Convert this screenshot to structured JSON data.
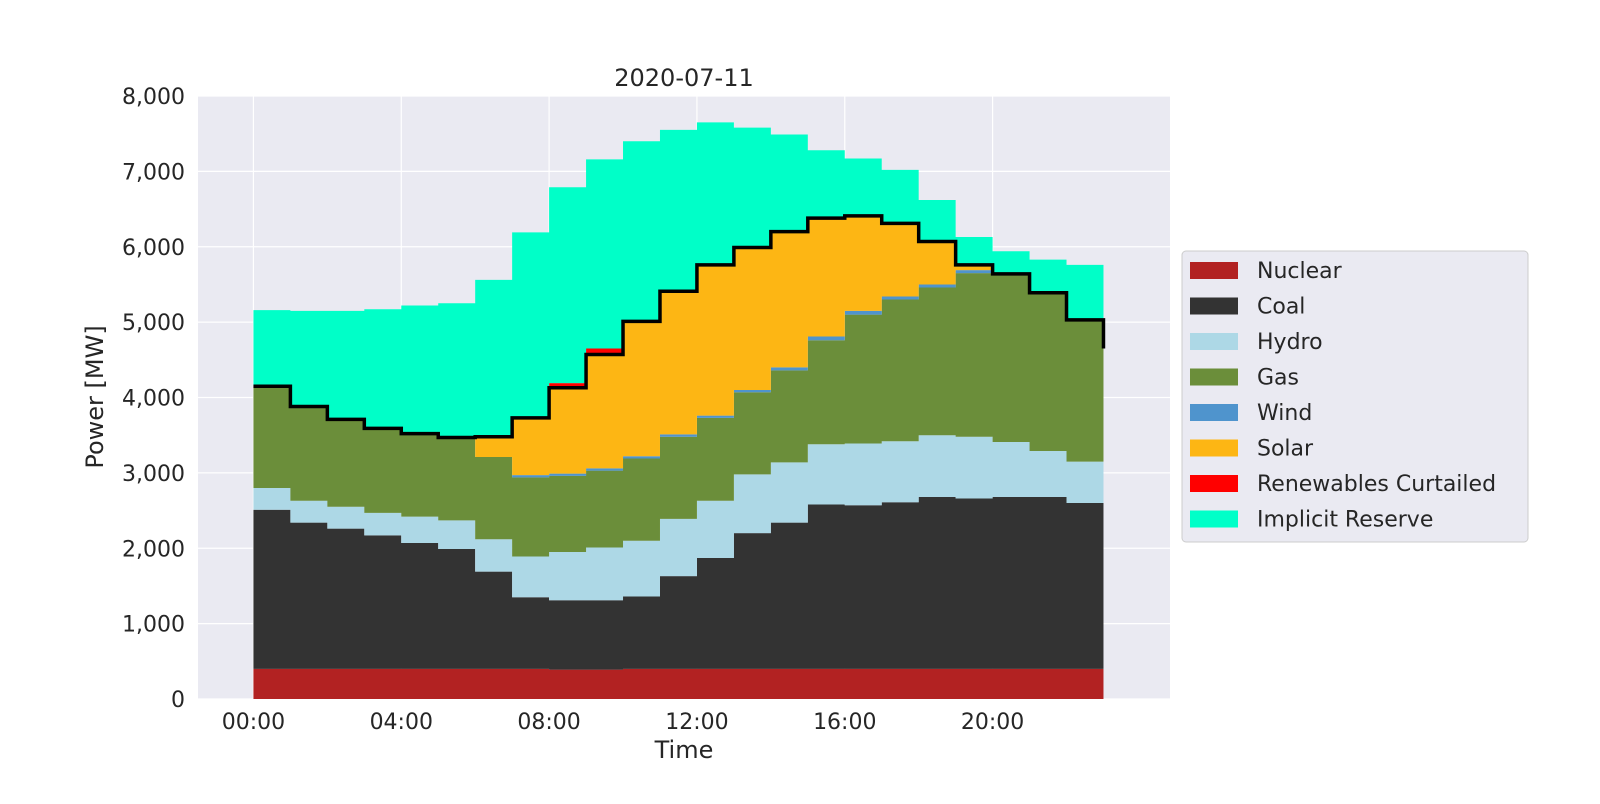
{
  "chart_data": {
    "type": "area",
    "step": "post",
    "stacked": true,
    "title": "2020-07-11",
    "xlabel": "Time",
    "ylabel": "Power [MW]",
    "xlim_hours": [
      -1.5,
      24.8
    ],
    "ylim": [
      0,
      8000
    ],
    "grid": true,
    "legend_position": "right",
    "x_ticks": [
      {
        "hour": 0,
        "label": "00:00"
      },
      {
        "hour": 4,
        "label": "04:00"
      },
      {
        "hour": 8,
        "label": "08:00"
      },
      {
        "hour": 12,
        "label": "12:00"
      },
      {
        "hour": 16,
        "label": "16:00"
      },
      {
        "hour": 20,
        "label": "20:00"
      }
    ],
    "y_ticks": [
      {
        "value": 0,
        "label": "0"
      },
      {
        "value": 1000,
        "label": "1,000"
      },
      {
        "value": 2000,
        "label": "2,000"
      },
      {
        "value": 3000,
        "label": "3,000"
      },
      {
        "value": 4000,
        "label": "4,000"
      },
      {
        "value": 5000,
        "label": "5,000"
      },
      {
        "value": 6000,
        "label": "6,000"
      },
      {
        "value": 7000,
        "label": "7,000"
      },
      {
        "value": 8000,
        "label": "8,000"
      }
    ],
    "x": [
      "00:00",
      "01:00",
      "02:00",
      "03:00",
      "04:00",
      "05:00",
      "06:00",
      "07:00",
      "08:00",
      "09:00",
      "10:00",
      "11:00",
      "12:00",
      "13:00",
      "14:00",
      "15:00",
      "16:00",
      "17:00",
      "18:00",
      "19:00",
      "20:00",
      "21:00",
      "22:00",
      "23:00"
    ],
    "series": [
      {
        "name": "Nuclear",
        "color": "#b22222",
        "values": [
          400,
          400,
          400,
          400,
          400,
          400,
          400,
          400,
          390,
          390,
          400,
          400,
          400,
          400,
          400,
          400,
          400,
          400,
          400,
          400,
          400,
          400,
          400,
          400
        ]
      },
      {
        "name": "Coal",
        "color": "#333333",
        "values": [
          2110,
          1940,
          1860,
          1770,
          1670,
          1590,
          1290,
          950,
          920,
          920,
          960,
          1230,
          1470,
          1800,
          1940,
          2180,
          2170,
          2210,
          2280,
          2260,
          2280,
          2280,
          2200,
          2170
        ]
      },
      {
        "name": "Hydro",
        "color": "#add8e6",
        "values": [
          290,
          290,
          290,
          300,
          350,
          380,
          430,
          540,
          640,
          700,
          740,
          760,
          760,
          780,
          800,
          800,
          820,
          810,
          820,
          820,
          730,
          610,
          550,
          470
        ]
      },
      {
        "name": "Gas",
        "color": "#6b8e3a",
        "values": [
          1350,
          1250,
          1160,
          1120,
          1100,
          1100,
          1090,
          1050,
          1010,
          1020,
          1090,
          1090,
          1100,
          1090,
          1220,
          1380,
          1710,
          1880,
          1960,
          2170,
          2230,
          2100,
          1870,
          1610
        ]
      },
      {
        "name": "Wind",
        "color": "#4f94cd",
        "values": [
          0,
          0,
          0,
          0,
          0,
          0,
          0,
          30,
          30,
          30,
          30,
          30,
          30,
          30,
          40,
          50,
          50,
          40,
          40,
          40,
          0,
          0,
          0,
          0
        ]
      },
      {
        "name": "Solar",
        "color": "#fdb614",
        "values": [
          0,
          0,
          0,
          0,
          0,
          0,
          270,
          770,
          1120,
          1530,
          1790,
          1900,
          2000,
          1900,
          1810,
          1590,
          1270,
          970,
          570,
          60,
          0,
          0,
          0,
          0
        ]
      },
      {
        "name": "Renewables Curtailed",
        "color": "#ff0000",
        "values": [
          0,
          0,
          0,
          0,
          0,
          0,
          0,
          0,
          80,
          60,
          0,
          0,
          0,
          0,
          0,
          0,
          0,
          0,
          0,
          0,
          0,
          0,
          0,
          0
        ]
      },
      {
        "name": "Implicit Reserve",
        "color": "#00ffc8",
        "values": [
          1010,
          1270,
          1440,
          1580,
          1700,
          1780,
          2080,
          2450,
          2600,
          2510,
          2390,
          2140,
          1890,
          1580,
          1280,
          880,
          750,
          710,
          550,
          380,
          300,
          440,
          740,
          930
        ]
      }
    ],
    "demand_line": {
      "color": "#000000",
      "values": [
        4150,
        3880,
        3710,
        3590,
        3520,
        3470,
        3480,
        3730,
        4130,
        4570,
        5010,
        5410,
        5760,
        5990,
        6200,
        6380,
        6410,
        6310,
        6070,
        5760,
        5640,
        5390,
        5030,
        4650
      ]
    }
  }
}
